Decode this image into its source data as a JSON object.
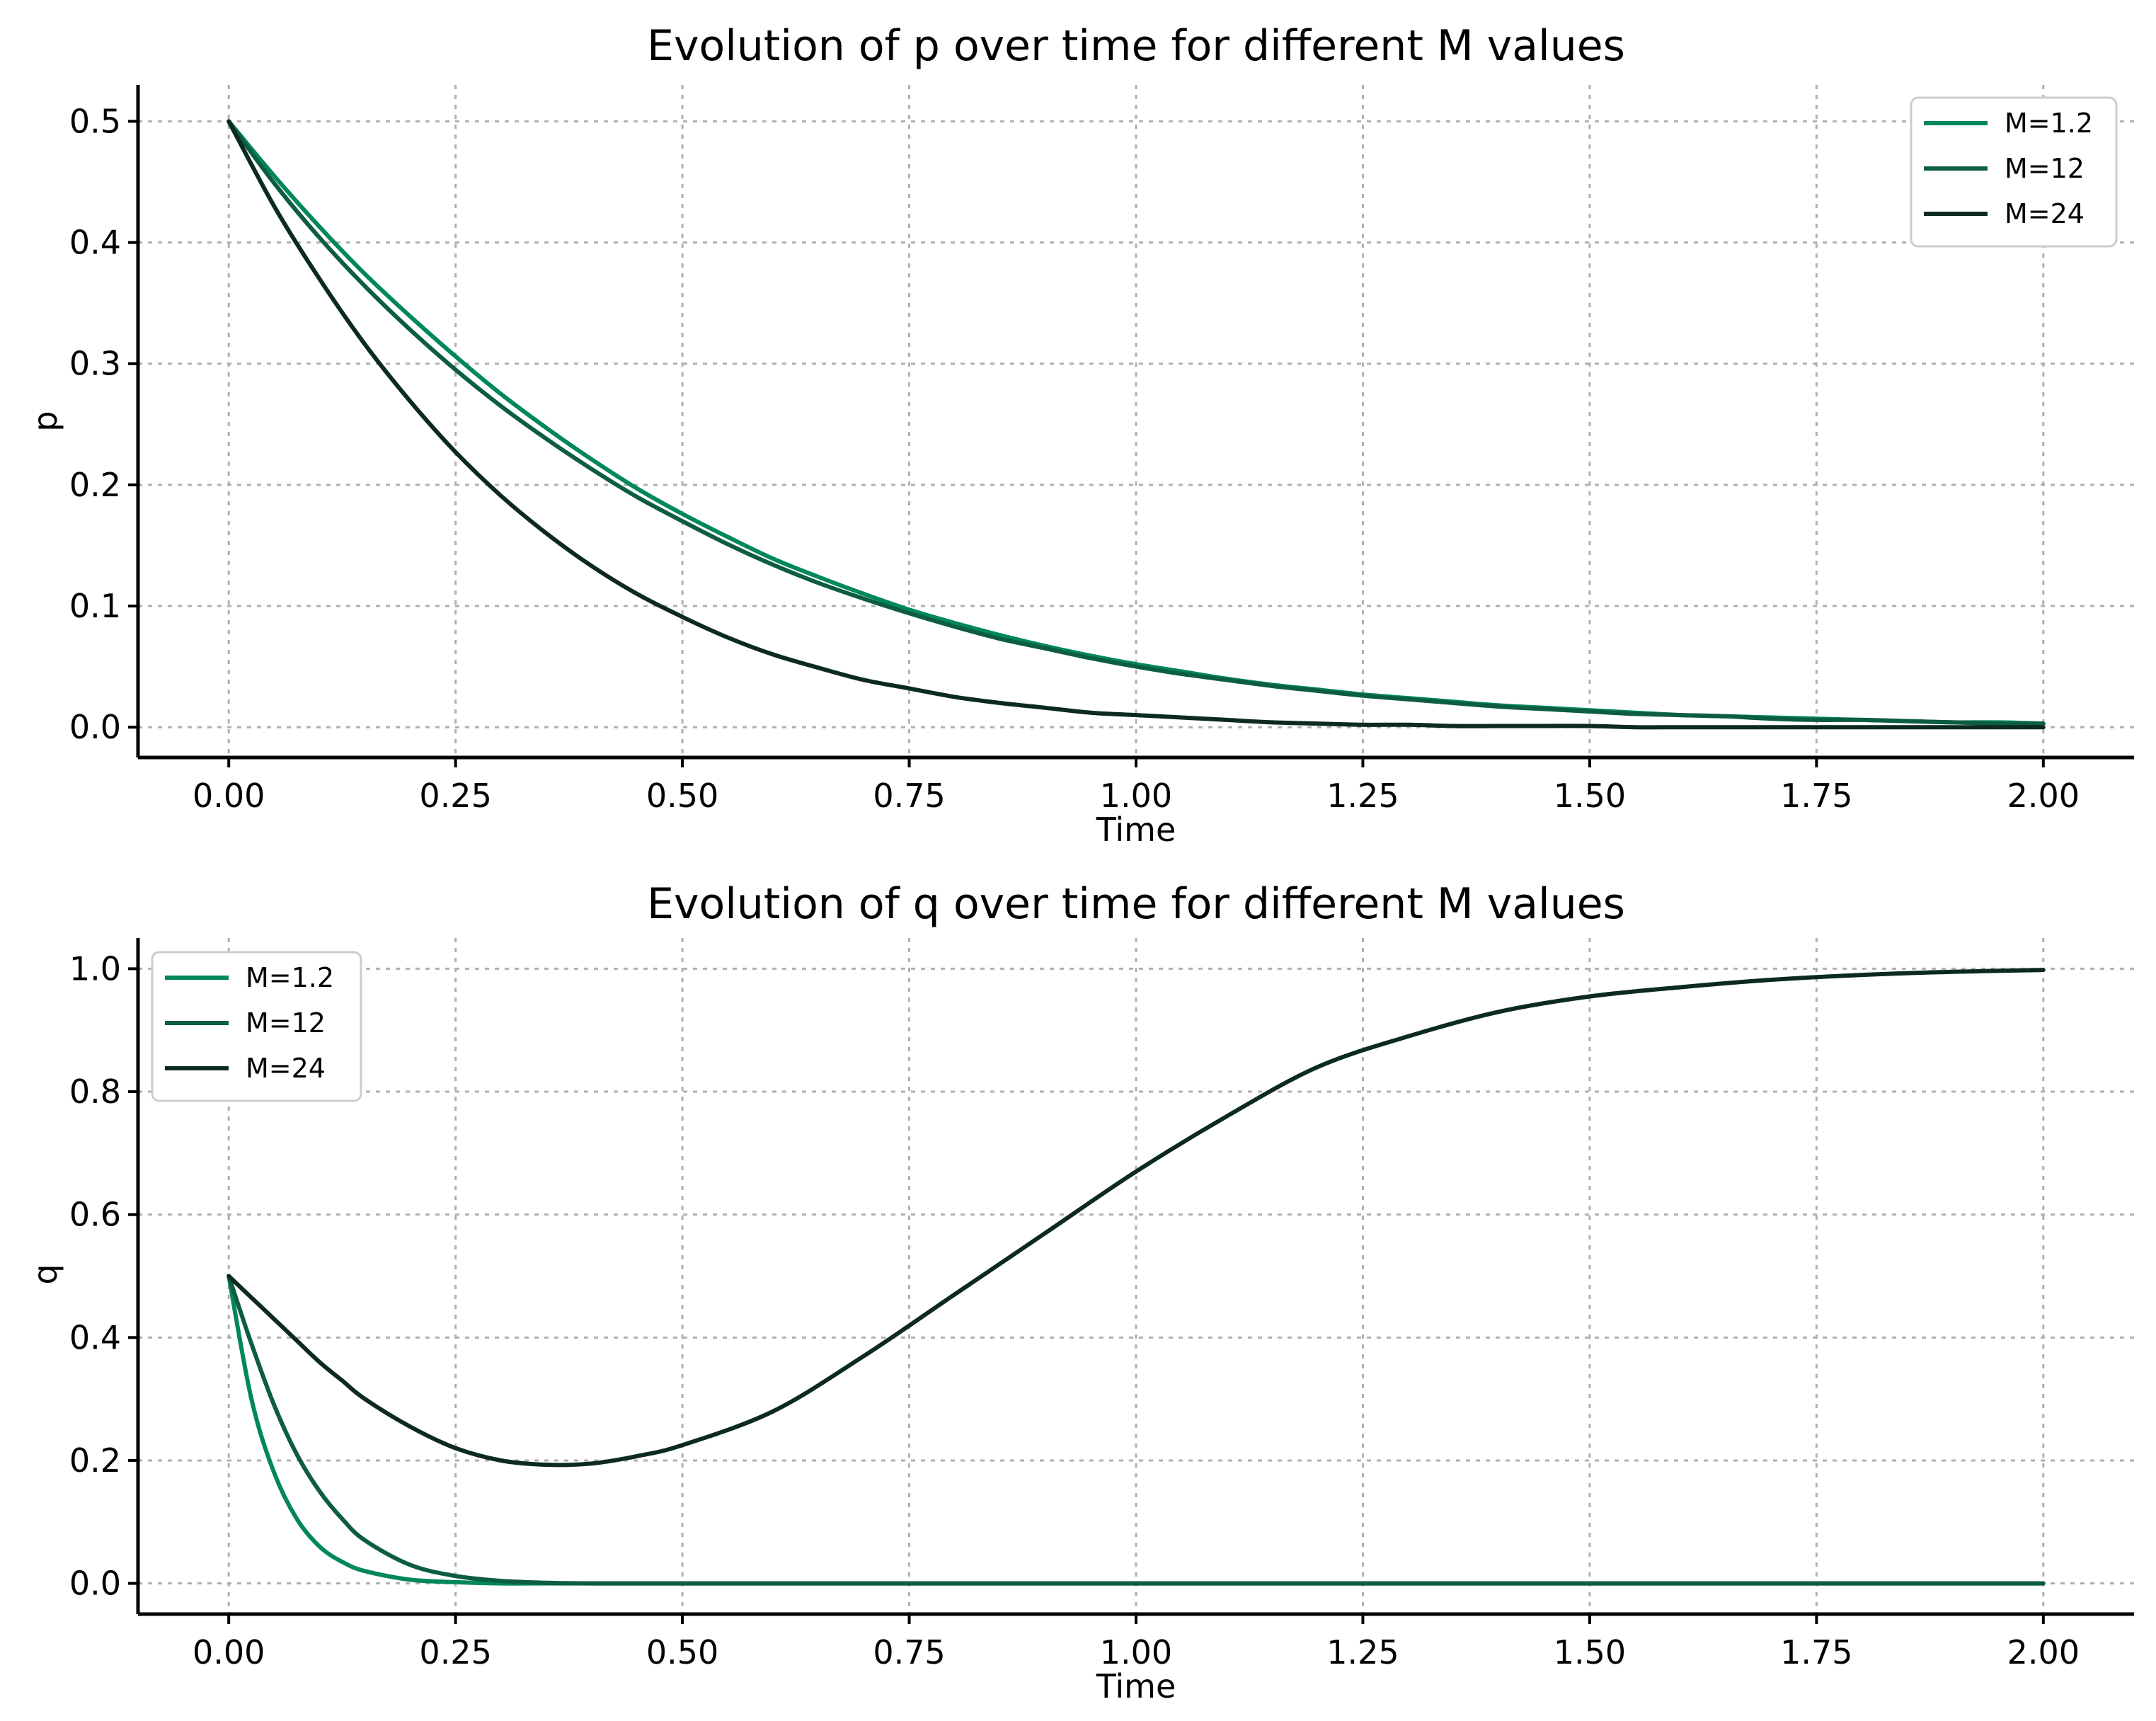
{
  "chart_data": [
    {
      "type": "line",
      "title": "Evolution of p over time for different M values",
      "xlabel": "Time",
      "ylabel": "p",
      "xlim": [
        -0.1,
        2.1
      ],
      "ylim": [
        -0.025,
        0.53
      ],
      "xticks": [
        "0.00",
        "0.25",
        "0.50",
        "0.75",
        "1.00",
        "1.25",
        "1.50",
        "1.75",
        "2.00"
      ],
      "yticks": [
        "0.0",
        "0.1",
        "0.2",
        "0.3",
        "0.4",
        "0.5"
      ],
      "grid": true,
      "legend_position": "top-right",
      "x": [
        0,
        0.05,
        0.1,
        0.15,
        0.2,
        0.25,
        0.3,
        0.35,
        0.4,
        0.45,
        0.5,
        0.55,
        0.6,
        0.65,
        0.7,
        0.75,
        0.8,
        0.85,
        0.9,
        0.95,
        1.0,
        1.05,
        1.1,
        1.15,
        1.2,
        1.25,
        1.3,
        1.35,
        1.4,
        1.45,
        1.5,
        1.55,
        1.6,
        1.65,
        1.7,
        1.75,
        1.8,
        1.85,
        1.9,
        1.95,
        2.0
      ],
      "series": [
        {
          "name": "M=1.2",
          "color": "#00875a",
          "values": [
            0.5,
            0.455,
            0.413,
            0.374,
            0.339,
            0.306,
            0.275,
            0.247,
            0.221,
            0.197,
            0.176,
            0.157,
            0.139,
            0.124,
            0.11,
            0.097,
            0.086,
            0.076,
            0.067,
            0.059,
            0.052,
            0.046,
            0.04,
            0.035,
            0.031,
            0.027,
            0.024,
            0.021,
            0.018,
            0.016,
            0.014,
            0.012,
            0.01,
            0.009,
            0.008,
            0.007,
            0.006,
            0.005,
            0.004,
            0.004,
            0.003
          ]
        },
        {
          "name": "M=12",
          "color": "#0d5c44",
          "values": [
            0.5,
            0.449,
            0.404,
            0.364,
            0.328,
            0.295,
            0.265,
            0.238,
            0.213,
            0.19,
            0.17,
            0.151,
            0.134,
            0.119,
            0.106,
            0.094,
            0.083,
            0.073,
            0.065,
            0.057,
            0.05,
            0.044,
            0.039,
            0.034,
            0.03,
            0.026,
            0.023,
            0.02,
            0.017,
            0.015,
            0.013,
            0.011,
            0.01,
            0.009,
            0.007,
            0.006,
            0.006,
            0.005,
            0.004,
            0.003,
            0.003
          ]
        },
        {
          "name": "M=24",
          "color": "#0c2a22",
          "values": [
            0.5,
            0.43,
            0.37,
            0.316,
            0.269,
            0.227,
            0.191,
            0.16,
            0.133,
            0.11,
            0.091,
            0.074,
            0.06,
            0.049,
            0.039,
            0.032,
            0.025,
            0.02,
            0.016,
            0.012,
            0.01,
            0.008,
            0.006,
            0.004,
            0.003,
            0.002,
            0.002,
            0.001,
            0.001,
            0.001,
            0.001,
            0.0,
            0.0,
            0.0,
            0.0,
            0.0,
            0.0,
            0.0,
            0.0,
            0.0,
            0.0
          ]
        }
      ]
    },
    {
      "type": "line",
      "title": "Evolution of q over time for different M values",
      "xlabel": "Time",
      "ylabel": "q",
      "xlim": [
        -0.1,
        2.1
      ],
      "ylim": [
        -0.05,
        1.05
      ],
      "xticks": [
        "0.00",
        "0.25",
        "0.50",
        "0.75",
        "1.00",
        "1.25",
        "1.50",
        "1.75",
        "2.00"
      ],
      "yticks": [
        "0.0",
        "0.2",
        "0.4",
        "0.6",
        "0.8",
        "1.0"
      ],
      "grid": true,
      "legend_position": "top-left",
      "x": [
        0,
        0.025,
        0.05,
        0.075,
        0.1,
        0.125,
        0.15,
        0.2,
        0.25,
        0.3,
        0.35,
        0.4,
        0.45,
        0.5,
        0.6,
        0.7,
        0.8,
        0.9,
        1.0,
        1.1,
        1.2,
        1.3,
        1.4,
        1.5,
        1.6,
        1.7,
        1.8,
        1.9,
        2.0
      ],
      "series": [
        {
          "name": "M=1.2",
          "color": "#00875a",
          "values": [
            0.5,
            0.3,
            0.18,
            0.105,
            0.06,
            0.035,
            0.02,
            0.006,
            0.002,
            0.0,
            0.0,
            0.0,
            0.0,
            0.0,
            0.0,
            0.0,
            0.0,
            0.0,
            0.0,
            0.0,
            0.0,
            0.0,
            0.0,
            0.0,
            0.0,
            0.0,
            0.0,
            0.0,
            0.0
          ]
        },
        {
          "name": "M=12",
          "color": "#0d5c44",
          "values": [
            0.5,
            0.39,
            0.29,
            0.21,
            0.15,
            0.105,
            0.07,
            0.03,
            0.012,
            0.004,
            0.001,
            0.0,
            0.0,
            0.0,
            0.0,
            0.0,
            0.0,
            0.0,
            0.0,
            0.0,
            0.0,
            0.0,
            0.0,
            0.0,
            0.0,
            0.0,
            0.0,
            0.0,
            0.0
          ]
        },
        {
          "name": "M=24",
          "color": "#0c2a22",
          "values": [
            0.5,
            0.465,
            0.43,
            0.395,
            0.36,
            0.33,
            0.3,
            0.255,
            0.22,
            0.2,
            0.193,
            0.195,
            0.207,
            0.225,
            0.28,
            0.37,
            0.47,
            0.57,
            0.67,
            0.76,
            0.84,
            0.89,
            0.93,
            0.955,
            0.97,
            0.982,
            0.99,
            0.995,
            0.998
          ]
        }
      ]
    }
  ]
}
